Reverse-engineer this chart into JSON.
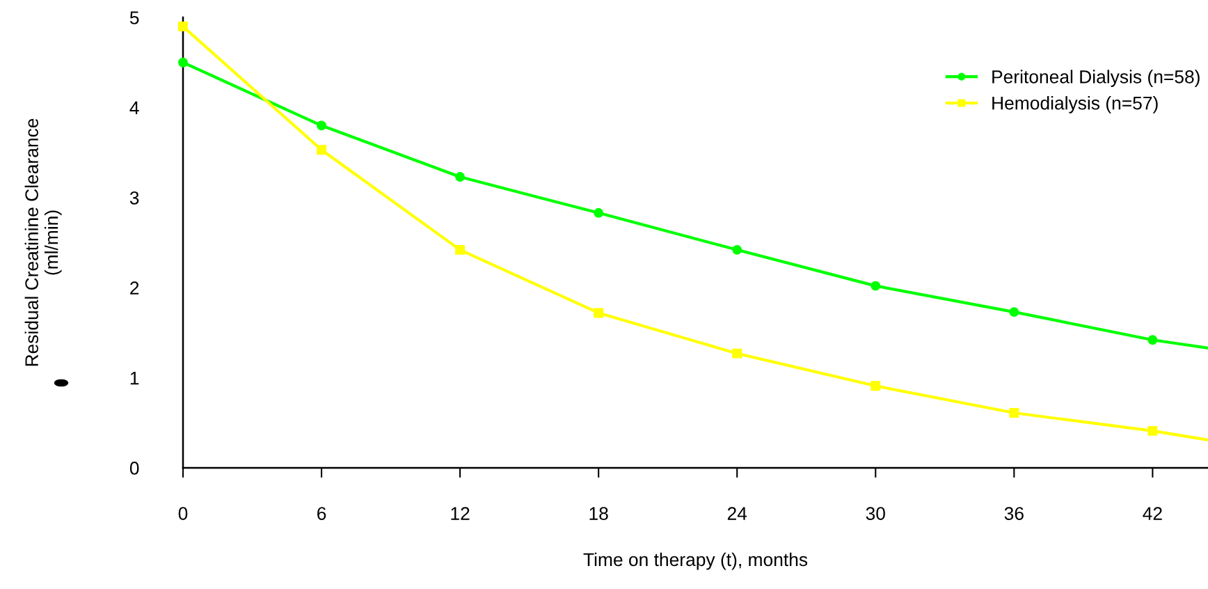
{
  "chart_data": {
    "type": "line",
    "xlabel": "Time on therapy (t), months",
    "ylabel": "Residual Creatinine Clearance\n(ml/min)",
    "series": [
      {
        "name": "Peritoneal Dialysis (n=58)",
        "color": "#00ff00",
        "marker": "circle",
        "x": [
          0,
          6,
          12,
          18,
          24,
          30,
          36,
          42,
          44.4
        ],
        "values": [
          4.5,
          3.8,
          3.23,
          2.83,
          2.42,
          2.02,
          1.73,
          1.42,
          1.33
        ]
      },
      {
        "name": "Hemodialysis (n=57)",
        "color": "#ffff00",
        "marker": "square",
        "x": [
          0,
          6,
          12,
          18,
          24,
          30,
          36,
          42,
          44.4
        ],
        "values": [
          4.9,
          3.53,
          2.42,
          1.72,
          1.27,
          0.91,
          0.61,
          0.41,
          0.31
        ]
      }
    ],
    "xlim": [
      0,
      44.4
    ],
    "xticks": [
      0,
      6,
      12,
      18,
      24,
      30,
      36,
      42
    ],
    "ylim": [
      0,
      5
    ],
    "yticks": [
      0,
      1,
      2,
      3,
      4,
      5
    ],
    "legend": "top right",
    "grid": false,
    "line_style": "solid"
  }
}
